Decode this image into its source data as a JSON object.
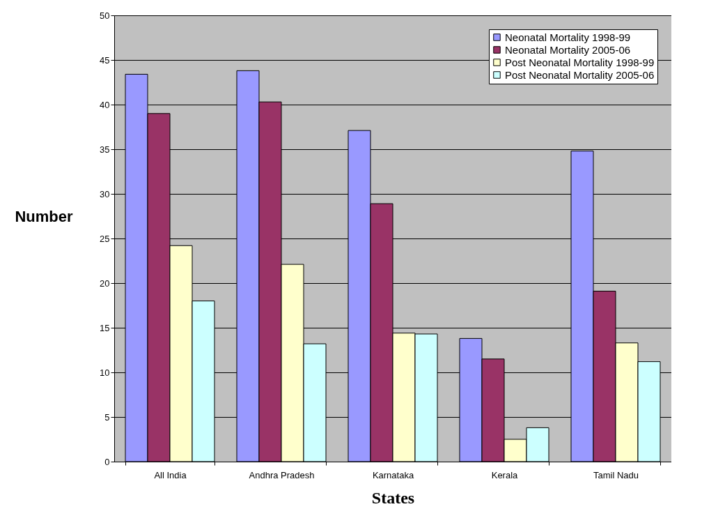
{
  "chart_data": {
    "type": "bar",
    "xlabel": "States",
    "ylabel": "Number",
    "categories": [
      "All India",
      "Andhra Pradesh",
      "Karnataka",
      "Kerala",
      "Tamil Nadu"
    ],
    "series": [
      {
        "name": "Neonatal Mortality 1998-99",
        "color": "#9999ff",
        "values": [
          43.4,
          43.8,
          37.1,
          13.8,
          34.8
        ]
      },
      {
        "name": "Neonatal Mortality 2005-06",
        "color": "#993366",
        "values": [
          39.0,
          40.3,
          28.9,
          11.5,
          19.1
        ]
      },
      {
        "name": "Post Neonatal Mortality 1998-99",
        "color": "#ffffcc",
        "values": [
          24.2,
          22.1,
          14.4,
          2.5,
          13.3
        ]
      },
      {
        "name": "Post Neonatal Mortality 2005-06",
        "color": "#ccffff",
        "values": [
          18.0,
          13.2,
          14.3,
          3.8,
          11.2
        ]
      }
    ],
    "ylim": [
      0,
      50
    ],
    "yticks": [
      0,
      5,
      10,
      15,
      20,
      25,
      30,
      35,
      40,
      45,
      50
    ],
    "grid": "y",
    "legend": "top right"
  }
}
